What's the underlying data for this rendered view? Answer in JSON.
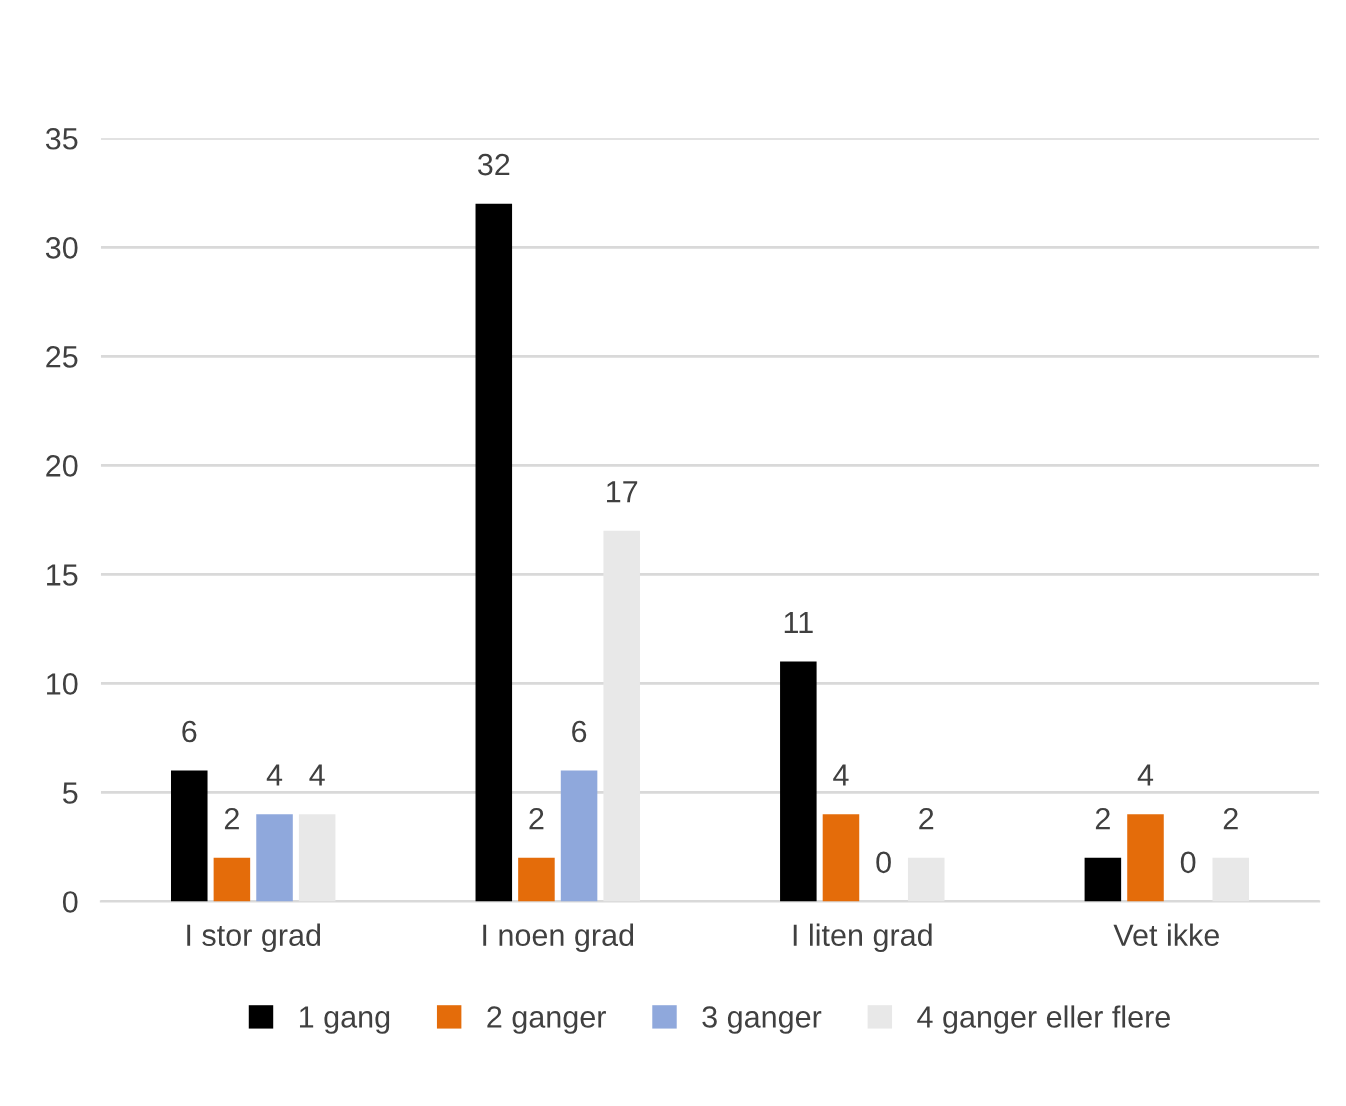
{
  "chart_data": {
    "type": "bar",
    "categories": [
      "I stor grad",
      "I noen grad",
      "I liten grad",
      "Vet ikke"
    ],
    "series": [
      {
        "name": "1 gang",
        "color": "#000000",
        "values": [
          6,
          32,
          11,
          2
        ]
      },
      {
        "name": "2 ganger",
        "color": "#e46c0a",
        "values": [
          2,
          2,
          4,
          4
        ]
      },
      {
        "name": "3 ganger",
        "color": "#8fa8dc",
        "values": [
          4,
          6,
          0,
          0
        ]
      },
      {
        "name": "4 ganger eller flere",
        "color": "#e8e8e8",
        "values": [
          4,
          17,
          2,
          2
        ]
      }
    ],
    "ylim": [
      0,
      35
    ],
    "yticks": [
      0,
      5,
      10,
      15,
      20,
      25,
      30,
      35
    ],
    "grid": "y",
    "legend": "bottom",
    "data_labels": true
  }
}
